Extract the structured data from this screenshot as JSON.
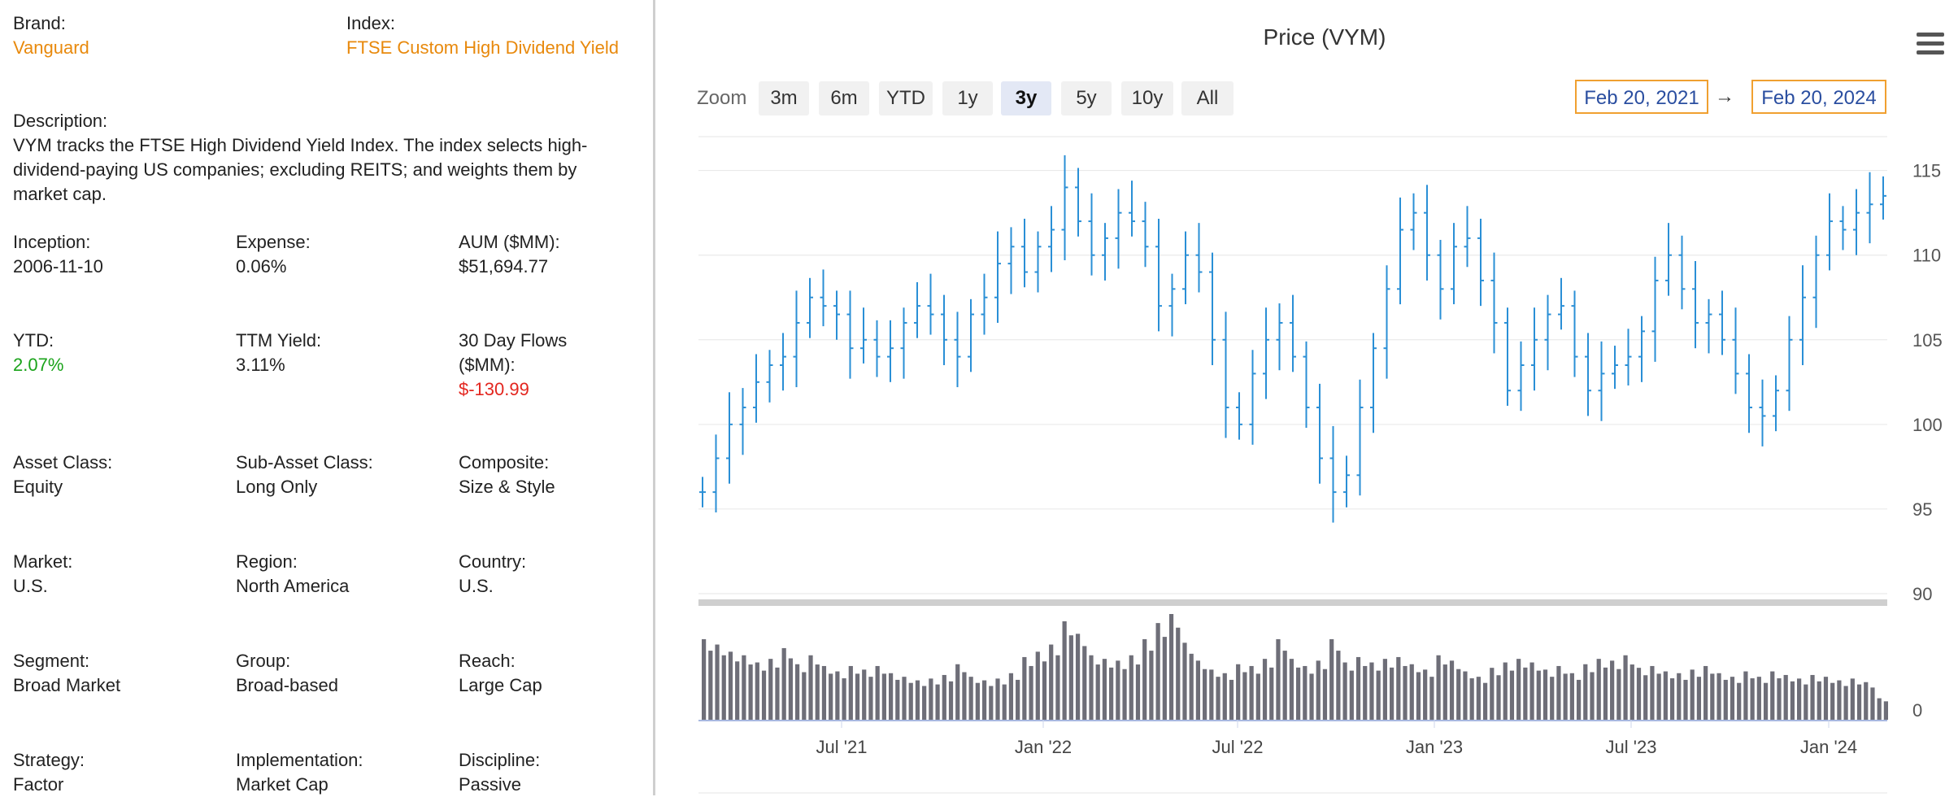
{
  "info": {
    "brand": {
      "label": "Brand:",
      "value": "Vanguard"
    },
    "index": {
      "label": "Index:",
      "value": "FTSE Custom High Dividend Yield"
    },
    "description": {
      "label": "Description:",
      "value": "VYM tracks the FTSE High Dividend Yield Index. The index selects high-dividend-paying US companies; excluding REITS; and weights them by market cap."
    },
    "inception": {
      "label": "Inception:",
      "value": "2006-11-10"
    },
    "expense": {
      "label": "Expense:",
      "value": "0.06%"
    },
    "aum": {
      "label": "AUM ($MM):",
      "value": "$51,694.77"
    },
    "ytd": {
      "label": "YTD:",
      "value": "2.07%"
    },
    "ttm_yield": {
      "label": "TTM Yield:",
      "value": "3.11%"
    },
    "flows": {
      "label": "30 Day Flows ($MM):",
      "value": "$-130.99"
    },
    "asset_class": {
      "label": "Asset Class:",
      "value": "Equity"
    },
    "sub_asset_class": {
      "label": "Sub-Asset Class:",
      "value": "Long Only"
    },
    "composite": {
      "label": "Composite:",
      "value": "Size & Style"
    },
    "market": {
      "label": "Market:",
      "value": "U.S."
    },
    "region": {
      "label": "Region:",
      "value": "North America"
    },
    "country": {
      "label": "Country:",
      "value": "U.S."
    },
    "segment": {
      "label": "Segment:",
      "value": "Broad Market"
    },
    "group": {
      "label": "Group:",
      "value": "Broad-based"
    },
    "reach": {
      "label": "Reach:",
      "value": "Large Cap"
    },
    "strategy": {
      "label": "Strategy:",
      "value": "Factor"
    },
    "implementation": {
      "label": "Implementation:",
      "value": "Market Cap"
    },
    "discipline": {
      "label": "Discipline:",
      "value": "Passive"
    }
  },
  "chart_controls": {
    "zoom_label": "Zoom",
    "zoom_buttons": [
      "3m",
      "6m",
      "YTD",
      "1y",
      "3y",
      "5y",
      "10y",
      "All"
    ],
    "active_zoom": "3y",
    "from_date": "Feb 20, 2021",
    "arrow": "→",
    "to_date": "Feb 20, 2024"
  },
  "colors": {
    "price_line": "#2a8fd6",
    "volume_bar": "#6e6e78",
    "accent": "#e8890c"
  },
  "chart_data": {
    "type": "line",
    "title": "Price (VYM)",
    "y_ticks": [
      90,
      95,
      100,
      105,
      110,
      115
    ],
    "ylim": [
      90,
      117
    ],
    "x_ticks": [
      "Jul '21",
      "Jan '22",
      "Jul '22",
      "Jan '23",
      "Jul '23",
      "Jan '24"
    ],
    "volume_ticks": [
      0
    ],
    "series": [
      {
        "kind": "price",
        "values": [
          96,
          98,
          100,
          101,
          102.5,
          103.5,
          104,
          106,
          107.5,
          107,
          106.5,
          104.5,
          105,
          104,
          104.5,
          106,
          107,
          106.5,
          105,
          104,
          106.5,
          107.5,
          109.5,
          110.5,
          109,
          110.5,
          111.5,
          114,
          112,
          110,
          111,
          112.5,
          112,
          110.5,
          107,
          108,
          110,
          109,
          105,
          101,
          100,
          103,
          105,
          106,
          104,
          101,
          98,
          96,
          97,
          101,
          104.5,
          108,
          111.5,
          112.5,
          110,
          108,
          110.5,
          111,
          108.5,
          106,
          102,
          103.5,
          105,
          106.5,
          107,
          104,
          102,
          103,
          103.5,
          104,
          105.5,
          108.5,
          110,
          108,
          106,
          106.5,
          105,
          103,
          101,
          100.5,
          102,
          105,
          107.5,
          110,
          112,
          111.5,
          112.5,
          113,
          113.5
        ]
      },
      {
        "kind": "volume",
        "values": [
          4.5,
          4.2,
          3.8,
          3.6,
          3.2,
          3.4,
          4.0,
          3.1,
          3.6,
          3.0,
          2.7,
          3.0,
          2.8,
          3.0,
          2.6,
          2.4,
          2.2,
          2.3,
          2.5,
          3.1,
          2.4,
          2.2,
          2.3,
          2.6,
          3.5,
          3.8,
          4.2,
          5.5,
          4.8,
          3.6,
          3.4,
          3.3,
          3.6,
          4.5,
          5.4,
          6.0,
          4.3,
          3.3,
          2.8,
          2.6,
          3.1,
          3.0,
          3.4,
          4.5,
          3.4,
          3.0,
          3.3,
          4.5,
          3.2,
          3.5,
          3.2,
          3.4,
          3.5,
          3.1,
          2.8,
          3.6,
          3.3,
          2.7,
          2.4,
          2.9,
          3.2,
          3.4,
          3.2,
          2.8,
          3.0,
          2.6,
          3.1,
          3.4,
          3.3,
          3.6,
          2.9,
          3.0,
          2.7,
          2.6,
          2.8,
          3.0,
          2.6,
          2.4,
          2.7,
          2.4,
          2.7,
          2.5,
          2.3,
          2.5,
          2.4,
          2.2,
          2.3,
          2.1,
          1.2
        ]
      }
    ]
  }
}
